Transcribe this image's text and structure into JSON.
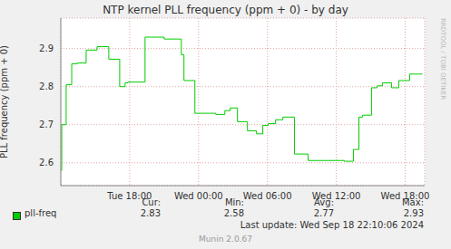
{
  "chart_data": {
    "type": "line",
    "title": "NTP kernel PLL frequency (ppm + 0) - by day",
    "y_label": "PLL frequency (ppm + 0)",
    "x": [
      12.0,
      12.08,
      12.47,
      12.95,
      13.42,
      14.21,
      15.16,
      16.18,
      17.13,
      17.6,
      17.84,
      19.34,
      21.0,
      22.5,
      22.73,
      23.68,
      25.5,
      26.29,
      26.76,
      27.39,
      28.26,
      29.05,
      29.6,
      30.07,
      30.71,
      31.34,
      32.36,
      33.55,
      36.7,
      37.49,
      37.97,
      38.28,
      39.07,
      39.55,
      40.02,
      40.81,
      41.44,
      42.39,
      43.5
    ],
    "series": [
      {
        "name": "pll-freq",
        "color": "#00cc00",
        "line_style": "step",
        "values": [
          2.58,
          2.7,
          2.805,
          2.86,
          2.862,
          2.896,
          2.905,
          2.872,
          2.8,
          2.81,
          2.812,
          2.93,
          2.925,
          2.884,
          2.816,
          2.73,
          2.727,
          2.737,
          2.744,
          2.708,
          2.684,
          2.676,
          2.698,
          2.703,
          2.713,
          2.72,
          2.623,
          2.606,
          2.604,
          2.635,
          2.72,
          2.725,
          2.797,
          2.802,
          2.81,
          2.797,
          2.816,
          2.833,
          2.833
        ]
      }
    ],
    "xlim": [
      12,
      43.7
    ],
    "xticks": [
      {
        "value": 18,
        "label": "Tue 18:00"
      },
      {
        "value": 24,
        "label": "Wed 00:00"
      },
      {
        "value": 30,
        "label": "Wed 06:00"
      },
      {
        "value": 36,
        "label": "Wed 12:00"
      },
      {
        "value": 42,
        "label": "Wed 18:00"
      }
    ],
    "ylim": [
      2.54,
      2.98
    ],
    "yticks": [
      2.6,
      2.7,
      2.8,
      2.9
    ],
    "grid": true,
    "legend": "bottom",
    "stats": [
      {
        "label": "Cur:",
        "value": 2.83
      },
      {
        "label": "Min:",
        "value": 2.58
      },
      {
        "label": "Avg:",
        "value": 2.77
      },
      {
        "label": "Max:",
        "value": 2.93
      }
    ],
    "last_update": "Last update: Wed Sep 18 22:10:06 2024",
    "watermark": "RRDTOOL / TOBI OETIKER",
    "credit": "Munin 2.0.67"
  }
}
